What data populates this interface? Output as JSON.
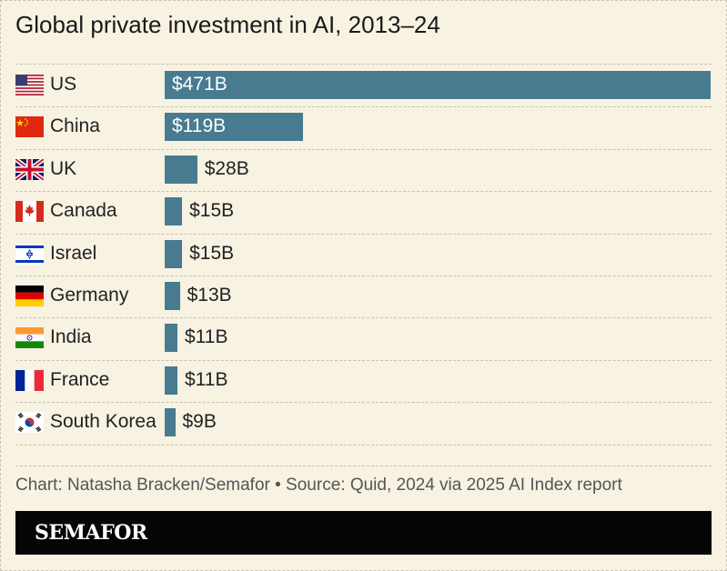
{
  "title": "Global private investment in AI, 2013–24",
  "source": "Chart: Natasha Bracken/Semafor • Source: Quid, 2024 via 2025 AI Index report",
  "logo": "SEMAFOR",
  "colors": {
    "background": "#f7f2e2",
    "bar": "#487b8f",
    "logo_bar": "#050505"
  },
  "chart_data": {
    "type": "bar",
    "orientation": "horizontal",
    "title": "Global private investment in AI, 2013–24",
    "categories": [
      "US",
      "China",
      "UK",
      "Canada",
      "Israel",
      "Germany",
      "India",
      "France",
      "South Korea"
    ],
    "values": [
      471,
      119,
      28,
      15,
      15,
      13,
      11,
      11,
      9
    ],
    "value_labels": [
      "$471B",
      "$119B",
      "$28B",
      "$15B",
      "$15B",
      "$13B",
      "$11B",
      "$11B",
      "$9B"
    ],
    "unit": "billion USD",
    "flags": [
      "us-flag-icon",
      "china-flag-icon",
      "uk-flag-icon",
      "canada-flag-icon",
      "israel-flag-icon",
      "germany-flag-icon",
      "india-flag-icon",
      "france-flag-icon",
      "south-korea-flag-icon"
    ],
    "xlim": [
      0,
      471
    ],
    "grid": false,
    "legend": "none"
  }
}
